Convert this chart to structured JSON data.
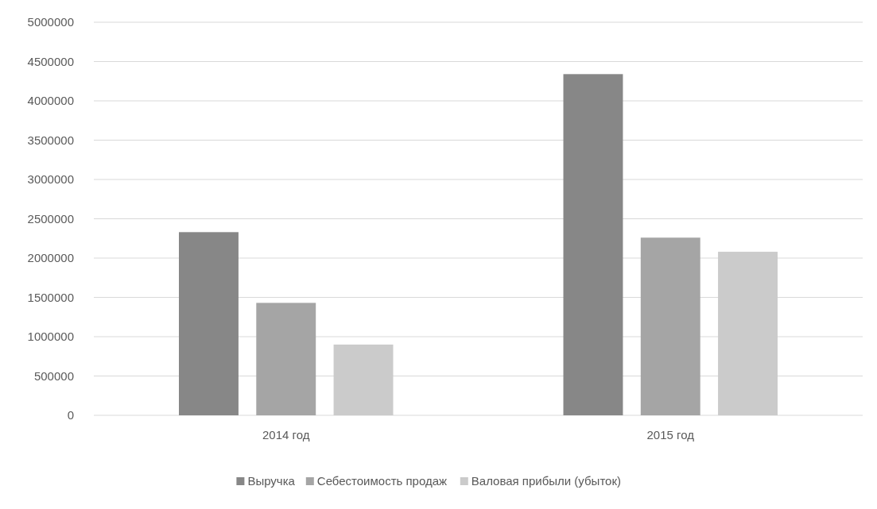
{
  "chart_data": {
    "type": "bar",
    "categories": [
      "2014 год",
      "2015 год"
    ],
    "series": [
      {
        "name": "Выручка",
        "color": "#878787",
        "values": [
          2330000,
          4340000
        ]
      },
      {
        "name": "Себестоимость продаж",
        "color": "#a5a5a5",
        "values": [
          1430000,
          2260000
        ]
      },
      {
        "name": "Валовая прибыли (убыток)",
        "color": "#cbcbcb",
        "values": [
          900000,
          2080000
        ]
      }
    ],
    "ylim": [
      0,
      5000000
    ],
    "yticks": [
      0,
      500000,
      1000000,
      1500000,
      2000000,
      2500000,
      3000000,
      3500000,
      4000000,
      4500000,
      5000000
    ],
    "grid": "y",
    "legend": "bottom"
  }
}
